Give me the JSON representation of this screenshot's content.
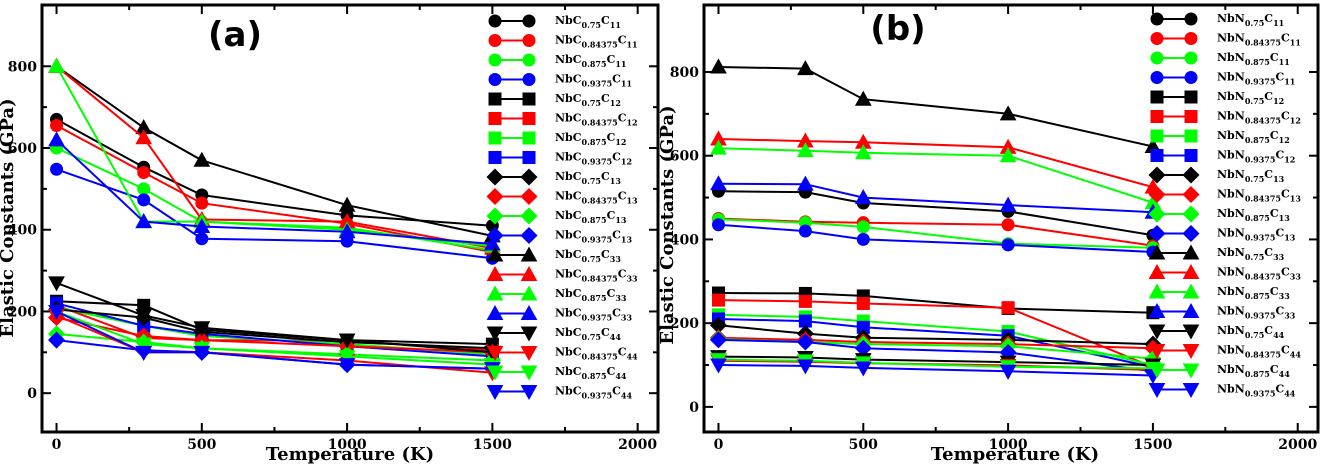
{
  "chart_data": [
    {
      "type": "line",
      "panel_label": "(a)",
      "xlabel": "Temperature (K)",
      "ylabel": "Elastic Constants (GPa)",
      "xlim": [
        -50,
        2070
      ],
      "ylim": [
        -95,
        950
      ],
      "xticks": [
        0,
        500,
        1000,
        1500,
        2000
      ],
      "yticks": [
        0,
        200,
        400,
        600,
        800
      ],
      "x": [
        0,
        300,
        500,
        1000,
        1500
      ],
      "legend_position": "right",
      "series": [
        {
          "base": "NbC",
          "sub": "0.75",
          "cst": "11",
          "color": "#000000",
          "marker": "circle",
          "values": [
            670,
            553,
            485,
            435,
            410
          ]
        },
        {
          "base": "NbC",
          "sub": "0.84375",
          "cst": "11",
          "color": "#ff0000",
          "marker": "circle",
          "values": [
            655,
            540,
            465,
            415,
            345
          ]
        },
        {
          "base": "NbC",
          "sub": "0.875",
          "cst": "11",
          "color": "#00ff00",
          "marker": "circle",
          "values": [
            600,
            500,
            420,
            405,
            350
          ]
        },
        {
          "base": "NbC",
          "sub": "0.9375",
          "cst": "11",
          "color": "#0000ff",
          "marker": "circle",
          "values": [
            548,
            473,
            378,
            372,
            330
          ]
        },
        {
          "base": "NbC",
          "sub": "0.75",
          "cst": "12",
          "color": "#000000",
          "marker": "square",
          "values": [
            225,
            215,
            155,
            130,
            120
          ]
        },
        {
          "base": "NbC",
          "sub": "0.84375",
          "cst": "12",
          "color": "#ff0000",
          "marker": "square",
          "values": [
            215,
            135,
            130,
            128,
            105
          ]
        },
        {
          "base": "NbC",
          "sub": "0.875",
          "cst": "12",
          "color": "#00ff00",
          "marker": "square",
          "values": [
            210,
            165,
            140,
            120,
            95
          ]
        },
        {
          "base": "NbC",
          "sub": "0.9375",
          "cst": "12",
          "color": "#0000ff",
          "marker": "square",
          "values": [
            220,
            165,
            145,
            115,
            90
          ]
        },
        {
          "base": "NbC",
          "sub": "0.75",
          "cst": "13",
          "color": "#000000",
          "marker": "diamond",
          "values": [
            205,
            185,
            150,
            125,
            110
          ]
        },
        {
          "base": "NbC",
          "sub": "0.84375",
          "cst": "13",
          "color": "#ff0000",
          "marker": "diamond",
          "values": [
            185,
            140,
            130,
            115,
            100
          ]
        },
        {
          "base": "NbC",
          "sub": "0.875",
          "cst": "13",
          "color": "#00ff00",
          "marker": "diamond",
          "values": [
            145,
            125,
            110,
            95,
            80
          ]
        },
        {
          "base": "NbC",
          "sub": "0.9375",
          "cst": "13",
          "color": "#0000ff",
          "marker": "diamond",
          "values": [
            130,
            105,
            100,
            70,
            60
          ]
        },
        {
          "base": "NbC",
          "sub": "0.75",
          "cst": "33",
          "color": "#000000",
          "marker": "triangle-up",
          "values": [
            800,
            650,
            570,
            460,
            385
          ]
        },
        {
          "base": "NbC",
          "sub": "0.84375",
          "cst": "33",
          "color": "#ff0000",
          "marker": "triangle-up",
          "values": [
            800,
            625,
            425,
            420,
            355
          ]
        },
        {
          "base": "NbC",
          "sub": "0.875",
          "cst": "33",
          "color": "#00ff00",
          "marker": "triangle-up",
          "values": [
            800,
            420,
            420,
            400,
            360
          ]
        },
        {
          "base": "NbC",
          "sub": "0.9375",
          "cst": "33",
          "color": "#0000ff",
          "marker": "triangle-up",
          "values": [
            620,
            420,
            408,
            395,
            365
          ]
        },
        {
          "base": "NbC",
          "sub": "0.75",
          "cst": "44",
          "color": "#000000",
          "marker": "triangle-down",
          "values": [
            270,
            190,
            160,
            130,
            100
          ]
        },
        {
          "base": "NbC",
          "sub": "0.84375",
          "cst": "44",
          "color": "#ff0000",
          "marker": "triangle-down",
          "values": [
            190,
            100,
            100,
            80,
            50
          ]
        },
        {
          "base": "NbC",
          "sub": "0.875",
          "cst": "44",
          "color": "#00ff00",
          "marker": "triangle-down",
          "values": [
            200,
            120,
            110,
            90,
            70
          ]
        },
        {
          "base": "NbC",
          "sub": "0.9375",
          "cst": "44",
          "color": "#0000ff",
          "marker": "triangle-down",
          "values": [
            200,
            100,
            100,
            70,
            60
          ]
        }
      ]
    },
    {
      "type": "line",
      "panel_label": "(b)",
      "xlabel": "Temperature (K)",
      "ylabel": "Elastic Constants (GPa)",
      "xlim": [
        -50,
        2070
      ],
      "ylim": [
        -60,
        960
      ],
      "xticks": [
        0,
        500,
        1000,
        1500,
        2000
      ],
      "yticks": [
        0,
        200,
        400,
        600,
        800
      ],
      "x": [
        0,
        300,
        500,
        1000,
        1500
      ],
      "legend_position": "right",
      "series": [
        {
          "base": "NbN",
          "sub": "0.75",
          "cst": "11",
          "color": "#000000",
          "marker": "circle",
          "values": [
            515,
            513,
            487,
            467,
            410
          ]
        },
        {
          "base": "NbN",
          "sub": "0.84375",
          "cst": "11",
          "color": "#ff0000",
          "marker": "circle",
          "values": [
            450,
            442,
            440,
            435,
            385
          ]
        },
        {
          "base": "NbN",
          "sub": "0.875",
          "cst": "11",
          "color": "#00ff00",
          "marker": "circle",
          "values": [
            448,
            440,
            430,
            390,
            380
          ]
        },
        {
          "base": "NbN",
          "sub": "0.9375",
          "cst": "11",
          "color": "#0000ff",
          "marker": "circle",
          "values": [
            435,
            420,
            400,
            387,
            370
          ]
        },
        {
          "base": "NbN",
          "sub": "0.75",
          "cst": "12",
          "color": "#000000",
          "marker": "square",
          "values": [
            272,
            271,
            265,
            235,
            225
          ]
        },
        {
          "base": "NbN",
          "sub": "0.84375",
          "cst": "12",
          "color": "#ff0000",
          "marker": "square",
          "values": [
            255,
            252,
            247,
            237,
            95
          ]
        },
        {
          "base": "NbN",
          "sub": "0.875",
          "cst": "12",
          "color": "#00ff00",
          "marker": "square",
          "values": [
            220,
            215,
            205,
            180,
            100
          ]
        },
        {
          "base": "NbN",
          "sub": "0.9375",
          "cst": "12",
          "color": "#0000ff",
          "marker": "square",
          "values": [
            210,
            205,
            190,
            170,
            95
          ]
        },
        {
          "base": "NbN",
          "sub": "0.75",
          "cst": "13",
          "color": "#000000",
          "marker": "diamond",
          "values": [
            195,
            175,
            165,
            160,
            150
          ]
        },
        {
          "base": "NbN",
          "sub": "0.84375",
          "cst": "13",
          "color": "#ff0000",
          "marker": "diamond",
          "values": [
            165,
            160,
            155,
            150,
            140
          ]
        },
        {
          "base": "NbN",
          "sub": "0.875",
          "cst": "13",
          "color": "#00ff00",
          "marker": "diamond",
          "values": [
            162,
            155,
            150,
            145,
            115
          ]
        },
        {
          "base": "NbN",
          "sub": "0.9375",
          "cst": "13",
          "color": "#0000ff",
          "marker": "diamond",
          "values": [
            160,
            155,
            140,
            130,
            85
          ]
        },
        {
          "base": "NbN",
          "sub": "0.75",
          "cst": "33",
          "color": "#000000",
          "marker": "triangle-up",
          "values": [
            812,
            808,
            735,
            700,
            622
          ]
        },
        {
          "base": "NbN",
          "sub": "0.84375",
          "cst": "33",
          "color": "#ff0000",
          "marker": "triangle-up",
          "values": [
            640,
            635,
            632,
            620,
            525
          ]
        },
        {
          "base": "NbN",
          "sub": "0.875",
          "cst": "33",
          "color": "#00ff00",
          "marker": "triangle-up",
          "values": [
            618,
            612,
            607,
            600,
            488
          ]
        },
        {
          "base": "NbN",
          "sub": "0.9375",
          "cst": "33",
          "color": "#0000ff",
          "marker": "triangle-up",
          "values": [
            533,
            532,
            500,
            482,
            465
          ]
        },
        {
          "base": "NbN",
          "sub": "0.75",
          "cst": "44",
          "color": "#000000",
          "marker": "triangle-down",
          "values": [
            120,
            118,
            113,
            107,
            100
          ]
        },
        {
          "base": "NbN",
          "sub": "0.84375",
          "cst": "44",
          "color": "#ff0000",
          "marker": "triangle-down",
          "values": [
            110,
            108,
            104,
            99,
            88
          ]
        },
        {
          "base": "NbN",
          "sub": "0.875",
          "cst": "44",
          "color": "#00ff00",
          "marker": "triangle-down",
          "values": [
            113,
            110,
            105,
            96,
            92
          ]
        },
        {
          "base": "NbN",
          "sub": "0.9375",
          "cst": "44",
          "color": "#0000ff",
          "marker": "triangle-down",
          "values": [
            100,
            98,
            93,
            85,
            75
          ]
        }
      ]
    }
  ]
}
